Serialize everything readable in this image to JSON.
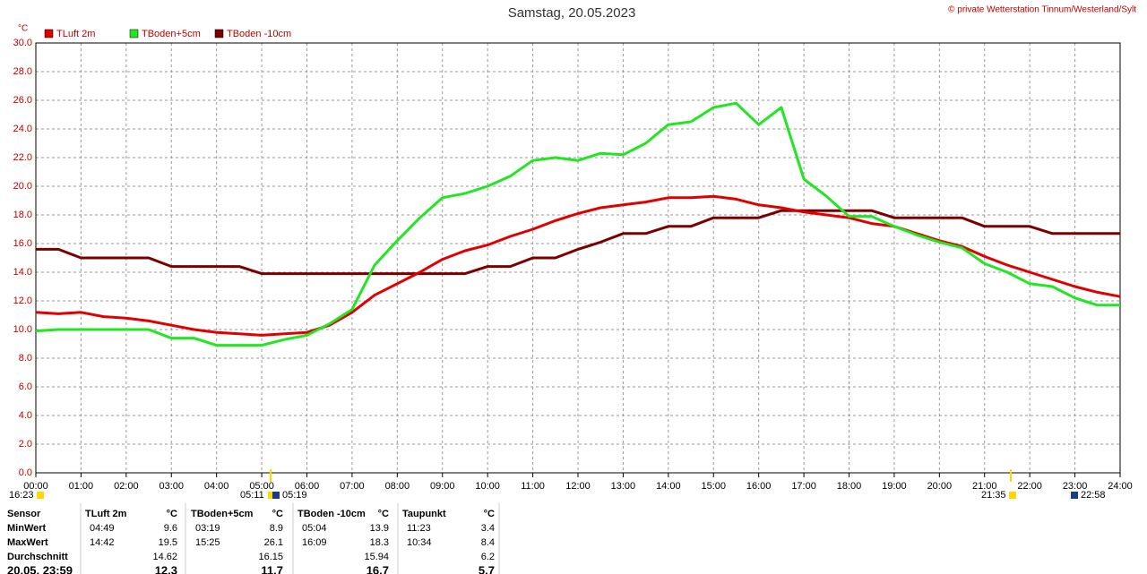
{
  "chart_data": {
    "type": "line",
    "title": "Samstag, 20.05.2023",
    "copyright": "© private Wetterstation Tinnum/Westerland/Sylt",
    "y_label": "°C",
    "x": [
      0,
      0.5,
      1,
      1.5,
      2,
      2.5,
      3,
      3.5,
      4,
      4.5,
      5,
      5.5,
      6,
      6.5,
      7,
      7.5,
      8,
      8.5,
      9,
      9.5,
      10,
      10.5,
      11,
      11.5,
      12,
      12.5,
      13,
      13.5,
      14,
      14.5,
      15,
      15.5,
      16,
      16.5,
      17,
      17.5,
      18,
      18.5,
      19,
      19.5,
      20,
      20.5,
      21,
      21.5,
      22,
      22.5,
      23,
      23.5,
      24
    ],
    "series": [
      {
        "name": "TLuft 2m",
        "color": "#e00000",
        "values": [
          11.2,
          11.1,
          11.2,
          10.9,
          10.8,
          10.6,
          10.3,
          10.0,
          9.8,
          9.7,
          9.6,
          9.7,
          9.8,
          10.3,
          11.2,
          12.4,
          13.2,
          14.0,
          14.9,
          15.5,
          15.9,
          16.5,
          17.0,
          17.6,
          18.1,
          18.5,
          18.7,
          18.9,
          19.2,
          19.2,
          19.3,
          19.1,
          18.7,
          18.5,
          18.2,
          18.0,
          17.8,
          17.4,
          17.2,
          16.7,
          16.2,
          15.8,
          15.1,
          14.5,
          14.0,
          13.5,
          13.0,
          12.6,
          12.3
        ]
      },
      {
        "name": "TBoden+5cm",
        "color": "#22e622",
        "values": [
          9.9,
          10.0,
          10.0,
          10.0,
          10.0,
          10.0,
          9.4,
          9.4,
          8.9,
          8.9,
          8.9,
          9.3,
          9.6,
          10.4,
          11.4,
          14.5,
          16.2,
          17.8,
          19.2,
          19.5,
          20.0,
          20.7,
          21.8,
          22.0,
          21.8,
          22.3,
          22.2,
          23.0,
          24.3,
          24.5,
          25.5,
          25.8,
          24.3,
          25.5,
          20.5,
          19.3,
          17.9,
          17.9,
          17.2,
          16.6,
          16.1,
          15.7,
          14.6,
          14.0,
          13.2,
          13.0,
          12.2,
          11.7,
          11.7
        ]
      },
      {
        "name": "TBoden -10cm",
        "color": "#7a0000",
        "values": [
          15.6,
          15.6,
          15.0,
          15.0,
          15.0,
          15.0,
          14.4,
          14.4,
          14.4,
          14.4,
          13.9,
          13.9,
          13.9,
          13.9,
          13.9,
          13.9,
          13.9,
          13.9,
          13.9,
          13.9,
          14.4,
          14.4,
          15.0,
          15.0,
          15.6,
          16.1,
          16.7,
          16.7,
          17.2,
          17.2,
          17.8,
          17.8,
          17.8,
          18.3,
          18.3,
          18.3,
          18.3,
          18.3,
          17.8,
          17.8,
          17.8,
          17.8,
          17.2,
          17.2,
          17.2,
          16.7,
          16.7,
          16.7,
          16.7
        ]
      }
    ],
    "xlim": [
      0,
      24
    ],
    "xticks": [
      {
        "value": 0,
        "label": "00:00"
      },
      {
        "value": 1,
        "label": "01:00"
      },
      {
        "value": 2,
        "label": "02:00"
      },
      {
        "value": 3,
        "label": "03:00"
      },
      {
        "value": 4,
        "label": "04:00"
      },
      {
        "value": 5,
        "label": "05:00"
      },
      {
        "value": 6,
        "label": "06:00"
      },
      {
        "value": 7,
        "label": "07:00"
      },
      {
        "value": 8,
        "label": "08:00"
      },
      {
        "value": 9,
        "label": "09:00"
      },
      {
        "value": 10,
        "label": "10:00"
      },
      {
        "value": 11,
        "label": "11:00"
      },
      {
        "value": 12,
        "label": "12:00"
      },
      {
        "value": 13,
        "label": "13:00"
      },
      {
        "value": 14,
        "label": "14:00"
      },
      {
        "value": 15,
        "label": "15:00"
      },
      {
        "value": 16,
        "label": "16:00"
      },
      {
        "value": 17,
        "label": "17:00"
      },
      {
        "value": 18,
        "label": "18:00"
      },
      {
        "value": 19,
        "label": "19:00"
      },
      {
        "value": 20,
        "label": "20:00"
      },
      {
        "value": 21,
        "label": "21:00"
      },
      {
        "value": 22,
        "label": "22:00"
      },
      {
        "value": 23,
        "label": "23:00"
      },
      {
        "value": 24,
        "label": "24:00"
      }
    ],
    "ylim": [
      0,
      30
    ],
    "yticks": [
      {
        "value": 0,
        "label": "0.0"
      },
      {
        "value": 2,
        "label": "2.0"
      },
      {
        "value": 4,
        "label": "4.0"
      },
      {
        "value": 6,
        "label": "6.0"
      },
      {
        "value": 8,
        "label": "8.0"
      },
      {
        "value": 10,
        "label": "10.0"
      },
      {
        "value": 12,
        "label": "12.0"
      },
      {
        "value": 14,
        "label": "14.0"
      },
      {
        "value": 16,
        "label": "16.0"
      },
      {
        "value": 18,
        "label": "18.0"
      },
      {
        "value": 20,
        "label": "20.0"
      },
      {
        "value": 22,
        "label": "22.0"
      },
      {
        "value": 24,
        "label": "24.0"
      },
      {
        "value": 26,
        "label": "26.0"
      },
      {
        "value": 28,
        "label": "28.0"
      },
      {
        "value": 30,
        "label": "30.0"
      }
    ],
    "grid": true,
    "time_markers": [
      "16:23",
      "05:11",
      "05:19",
      "21:35",
      "22:58"
    ]
  },
  "stats": {
    "rows": [
      [
        "Sensor",
        "TLuft 2m",
        "°C",
        "TBoden+5cm",
        "°C",
        "TBoden -10cm",
        "°C",
        "Taupunkt",
        "°C"
      ],
      [
        "MinWert",
        "04:49",
        "9.6",
        "03:19",
        "8.9",
        "05:04",
        "13.9",
        "11:23",
        "3.4"
      ],
      [
        "MaxWert",
        "14:42",
        "19.5",
        "15:25",
        "26.1",
        "16:09",
        "18.3",
        "10:34",
        "8.4"
      ],
      [
        "Durchschnitt",
        null,
        "14.62",
        null,
        "16.15",
        null,
        "15.94",
        null,
        "6.2"
      ],
      [
        "20.05. 23:59",
        null,
        "12.3",
        null,
        "11.7",
        null,
        "16.7",
        null,
        "5.7"
      ]
    ]
  }
}
